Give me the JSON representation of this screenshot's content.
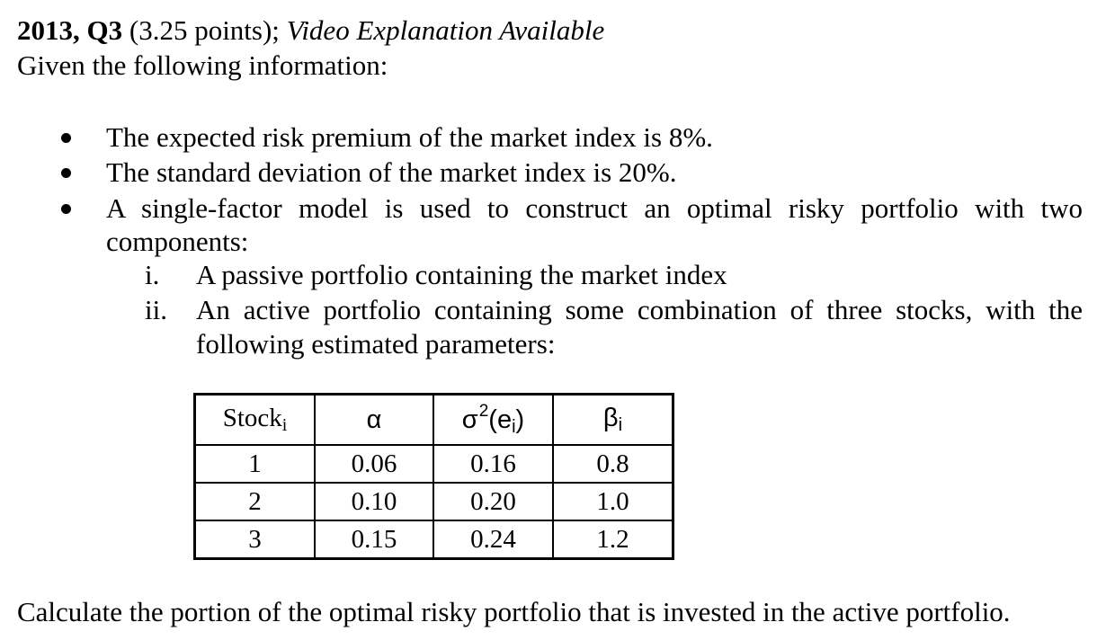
{
  "header": {
    "year_q": "2013, Q3",
    "points": " (3.25 points); ",
    "video_note": "Video Explanation Available"
  },
  "intro": "Given the following information:",
  "bullets": [
    "The expected risk premium of the market index is 8%.",
    "The standard deviation of the market index is 20%.",
    "A single-factor model is used to construct an optimal risky portfolio with two",
    "components:"
  ],
  "sub_items": [
    {
      "num": "i.",
      "text": "A passive portfolio containing the market index"
    },
    {
      "num": "ii.",
      "text_line1": "An active portfolio containing some combination of three stocks, with the",
      "text_line2": "following estimated parameters:"
    }
  ],
  "table": {
    "headers": {
      "stock": "Stock",
      "stock_sub": "i",
      "alpha": "α",
      "sigma": "σ",
      "sigma_sup": "2",
      "sigma_rest": "(e",
      "sigma_sub": "i",
      "sigma_close": ")",
      "beta": "β",
      "beta_sub": "i"
    },
    "rows": [
      {
        "stock": "1",
        "alpha": "0.06",
        "var": "0.16",
        "beta": "0.8"
      },
      {
        "stock": "2",
        "alpha": "0.10",
        "var": "0.20",
        "beta": "1.0"
      },
      {
        "stock": "3",
        "alpha": "0.15",
        "var": "0.24",
        "beta": "1.2"
      }
    ]
  },
  "question": "Calculate the portion of the optimal risky portfolio that is invested in the active portfolio."
}
